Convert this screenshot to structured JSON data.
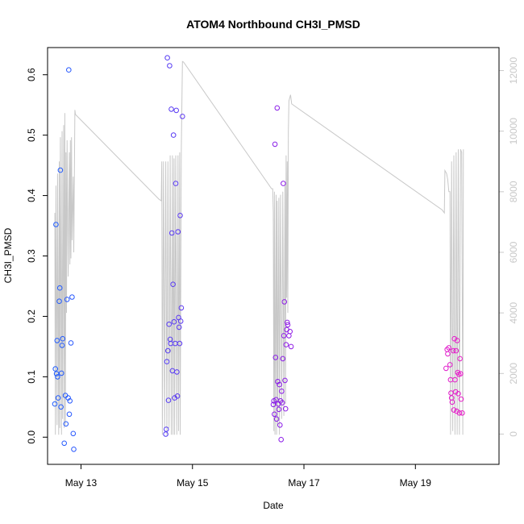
{
  "chart_data": {
    "type": "scatter",
    "title": "ATOM4 Northbound CH3I_PMSD",
    "xlabel": "Date",
    "ylabel": "CH3I_PMSD",
    "x_unit": "days since May 12 00:00",
    "xlim": [
      0.4,
      8.5
    ],
    "ylim": [
      -0.045,
      0.645
    ],
    "x_ticks": [
      {
        "value": 1,
        "label": "May 13"
      },
      {
        "value": 3,
        "label": "May 15"
      },
      {
        "value": 5,
        "label": "May 17"
      },
      {
        "value": 7,
        "label": "May 19"
      }
    ],
    "y_ticks": [
      0.0,
      0.1,
      0.2,
      0.3,
      0.4,
      0.5,
      0.6
    ],
    "y_tick_labels": [
      "0.0",
      "0.1",
      "0.2",
      "0.3",
      "0.4",
      "0.5",
      "0.6"
    ],
    "y2_ticks": [
      0,
      2000,
      4000,
      6000,
      8000,
      10000,
      12000
    ],
    "y2_tick_labels": [
      "0",
      "2000",
      "4000",
      "6000",
      "8000",
      "10000",
      "12000"
    ],
    "y2_range": [
      -1000,
      12760
    ],
    "secondary_series_color": "#c8c8c8",
    "colors": {
      "start": "#1f5cff",
      "mid": "#8a1be8",
      "end": "#e81bc8"
    },
    "points": [
      [
        0.53,
        0.055
      ],
      [
        0.54,
        0.113
      ],
      [
        0.55,
        0.352
      ],
      [
        0.56,
        0.105
      ],
      [
        0.57,
        0.16
      ],
      [
        0.58,
        0.1
      ],
      [
        0.59,
        0.065
      ],
      [
        0.61,
        0.225
      ],
      [
        0.62,
        0.247
      ],
      [
        0.63,
        0.442
      ],
      [
        0.64,
        0.05
      ],
      [
        0.65,
        0.106
      ],
      [
        0.66,
        0.152
      ],
      [
        0.67,
        0.163
      ],
      [
        0.7,
        -0.01
      ],
      [
        0.72,
        0.069
      ],
      [
        0.73,
        0.022
      ],
      [
        0.75,
        0.228
      ],
      [
        0.77,
        0.065
      ],
      [
        0.78,
        0.608
      ],
      [
        0.79,
        0.038
      ],
      [
        0.8,
        0.06
      ],
      [
        0.82,
        0.156
      ],
      [
        0.84,
        0.232
      ],
      [
        0.86,
        0.006
      ],
      [
        0.87,
        -0.02
      ],
      [
        2.52,
        0.005
      ],
      [
        2.53,
        0.013
      ],
      [
        2.54,
        0.125
      ],
      [
        2.55,
        0.628
      ],
      [
        2.56,
        0.143
      ],
      [
        2.57,
        0.061
      ],
      [
        2.58,
        0.187
      ],
      [
        2.59,
        0.615
      ],
      [
        2.6,
        0.162
      ],
      [
        2.61,
        0.155
      ],
      [
        2.62,
        0.543
      ],
      [
        2.63,
        0.338
      ],
      [
        2.64,
        0.11
      ],
      [
        2.65,
        0.253
      ],
      [
        2.66,
        0.5
      ],
      [
        2.67,
        0.191
      ],
      [
        2.68,
        0.065
      ],
      [
        2.69,
        0.155
      ],
      [
        2.7,
        0.42
      ],
      [
        2.71,
        0.541
      ],
      [
        2.72,
        0.108
      ],
      [
        2.73,
        0.068
      ],
      [
        2.74,
        0.34
      ],
      [
        2.75,
        0.198
      ],
      [
        2.76,
        0.182
      ],
      [
        2.77,
        0.155
      ],
      [
        2.78,
        0.367
      ],
      [
        2.79,
        0.192
      ],
      [
        2.8,
        0.214
      ],
      [
        2.82,
        0.531
      ],
      [
        4.45,
        0.054
      ],
      [
        4.46,
        0.06
      ],
      [
        4.47,
        0.038
      ],
      [
        4.48,
        0.485
      ],
      [
        4.49,
        0.132
      ],
      [
        4.5,
        0.062
      ],
      [
        4.51,
        0.03
      ],
      [
        4.52,
        0.545
      ],
      [
        4.53,
        0.092
      ],
      [
        4.54,
        0.055
      ],
      [
        4.55,
        0.046
      ],
      [
        4.56,
        0.087
      ],
      [
        4.57,
        0.02
      ],
      [
        4.58,
        0.06
      ],
      [
        4.59,
        -0.004
      ],
      [
        4.6,
        0.076
      ],
      [
        4.61,
        0.057
      ],
      [
        4.62,
        0.13
      ],
      [
        4.63,
        0.42
      ],
      [
        4.64,
        0.168
      ],
      [
        4.65,
        0.224
      ],
      [
        4.66,
        0.094
      ],
      [
        4.67,
        0.047
      ],
      [
        4.68,
        0.153
      ],
      [
        4.69,
        0.178
      ],
      [
        4.7,
        0.19
      ],
      [
        4.71,
        0.186
      ],
      [
        4.73,
        0.168
      ],
      [
        4.75,
        0.175
      ],
      [
        4.77,
        0.15
      ],
      [
        7.55,
        0.114
      ],
      [
        7.57,
        0.145
      ],
      [
        7.58,
        0.138
      ],
      [
        7.6,
        0.148
      ],
      [
        7.62,
        0.12
      ],
      [
        7.63,
        0.095
      ],
      [
        7.64,
        0.073
      ],
      [
        7.65,
        0.065
      ],
      [
        7.66,
        0.058
      ],
      [
        7.68,
        0.143
      ],
      [
        7.69,
        0.045
      ],
      [
        7.7,
        0.163
      ],
      [
        7.71,
        0.095
      ],
      [
        7.72,
        0.075
      ],
      [
        7.73,
        0.143
      ],
      [
        7.74,
        0.043
      ],
      [
        7.75,
        0.16
      ],
      [
        7.76,
        0.107
      ],
      [
        7.77,
        0.072
      ],
      [
        7.78,
        0.104
      ],
      [
        7.79,
        0.04
      ],
      [
        7.8,
        0.13
      ],
      [
        7.81,
        0.105
      ],
      [
        7.82,
        0.063
      ],
      [
        7.84,
        0.04
      ]
    ],
    "secondary_line": [
      [
        0.53,
        7300
      ],
      [
        0.54,
        -20
      ],
      [
        0.55,
        8200
      ],
      [
        0.57,
        300
      ],
      [
        0.58,
        8600
      ],
      [
        0.6,
        -20
      ],
      [
        0.61,
        9000
      ],
      [
        0.62,
        200
      ],
      [
        0.63,
        9800
      ],
      [
        0.65,
        -20
      ],
      [
        0.66,
        10000
      ],
      [
        0.67,
        500
      ],
      [
        0.69,
        10200
      ],
      [
        0.7,
        200
      ],
      [
        0.71,
        10600
      ],
      [
        0.72,
        300
      ],
      [
        0.73,
        9300
      ],
      [
        0.74,
        4000
      ],
      [
        0.75,
        9700
      ],
      [
        0.77,
        5200
      ],
      [
        0.79,
        9300
      ],
      [
        0.8,
        5600
      ],
      [
        0.81,
        9700
      ],
      [
        0.82,
        5800
      ],
      [
        0.83,
        9800
      ],
      [
        0.84,
        6400
      ],
      [
        0.86,
        8500
      ],
      [
        0.87,
        6000
      ],
      [
        0.89,
        10700
      ],
      [
        0.9,
        10550
      ],
      [
        2.4,
        7750
      ],
      [
        2.44,
        7700
      ],
      [
        2.45,
        9000
      ],
      [
        2.46,
        -20
      ],
      [
        2.48,
        9000
      ],
      [
        2.5,
        200
      ],
      [
        2.52,
        9000
      ],
      [
        2.54,
        -20
      ],
      [
        2.56,
        9000
      ],
      [
        2.58,
        200
      ],
      [
        2.6,
        9200
      ],
      [
        2.62,
        -20
      ],
      [
        2.64,
        9200
      ],
      [
        2.65,
        -20
      ],
      [
        2.67,
        9100
      ],
      [
        2.68,
        -20
      ],
      [
        2.7,
        9200
      ],
      [
        2.72,
        -20
      ],
      [
        2.74,
        9200
      ],
      [
        2.75,
        100
      ],
      [
        2.77,
        9300
      ],
      [
        2.78,
        -20
      ],
      [
        2.8,
        9400
      ],
      [
        2.82,
        12300
      ],
      [
        2.84,
        12280
      ],
      [
        4.42,
        8100
      ],
      [
        4.44,
        8100
      ],
      [
        4.45,
        7300
      ],
      [
        4.46,
        100
      ],
      [
        4.47,
        8000
      ],
      [
        4.48,
        -20
      ],
      [
        4.5,
        7900
      ],
      [
        4.51,
        -20
      ],
      [
        4.52,
        7700
      ],
      [
        4.53,
        300
      ],
      [
        4.55,
        7800
      ],
      [
        4.56,
        -20
      ],
      [
        4.58,
        7900
      ],
      [
        4.6,
        500
      ],
      [
        4.62,
        8000
      ],
      [
        4.64,
        600
      ],
      [
        4.66,
        8200
      ],
      [
        4.67,
        1000
      ],
      [
        4.68,
        9200
      ],
      [
        4.69,
        4500
      ],
      [
        4.7,
        9000
      ],
      [
        4.71,
        4000
      ],
      [
        4.72,
        10000
      ],
      [
        4.73,
        11000
      ],
      [
        4.76,
        11200
      ],
      [
        4.78,
        10900
      ],
      [
        7.48,
        7400
      ],
      [
        7.52,
        7300
      ],
      [
        7.53,
        8700
      ],
      [
        7.56,
        8600
      ],
      [
        7.58,
        8400
      ],
      [
        7.6,
        8000
      ],
      [
        7.62,
        8000
      ],
      [
        7.63,
        -20
      ],
      [
        7.65,
        9000
      ],
      [
        7.67,
        100
      ],
      [
        7.69,
        9200
      ],
      [
        7.71,
        -20
      ],
      [
        7.73,
        9300
      ],
      [
        7.75,
        -20
      ],
      [
        7.77,
        9400
      ],
      [
        7.79,
        -20
      ],
      [
        7.81,
        9400
      ],
      [
        7.83,
        9300
      ],
      [
        7.85,
        -20
      ],
      [
        7.86,
        9400
      ]
    ]
  }
}
